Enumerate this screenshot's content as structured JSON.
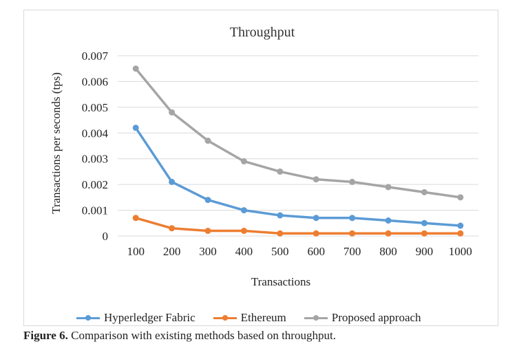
{
  "chart_data": {
    "type": "line",
    "title": "Throughput",
    "xlabel": "Transactions",
    "ylabel": "Transactions per seconds (tps)",
    "categories": [
      "100",
      "200",
      "300",
      "400",
      "500",
      "600",
      "700",
      "800",
      "900",
      "1000"
    ],
    "ylim": [
      0,
      0.007
    ],
    "yticks": [
      "0",
      "0.001",
      "0.002",
      "0.003",
      "0.004",
      "0.005",
      "0.006",
      "0.007"
    ],
    "grid": true,
    "legend_position": "bottom",
    "series": [
      {
        "name": "Hyperledger Fabric",
        "color": "#5b9bd5",
        "values": [
          0.0042,
          0.0021,
          0.0014,
          0.001,
          0.0008,
          0.0007,
          0.0007,
          0.0006,
          0.0005,
          0.0004
        ]
      },
      {
        "name": "Ethereum",
        "color": "#ed7d31",
        "values": [
          0.0007,
          0.0003,
          0.0002,
          0.0002,
          0.0001,
          0.0001,
          0.0001,
          0.0001,
          0.0001,
          0.0001
        ]
      },
      {
        "name": "Proposed approach",
        "color": "#a5a5a5",
        "values": [
          0.0065,
          0.0048,
          0.0037,
          0.0029,
          0.0025,
          0.0022,
          0.0021,
          0.0019,
          0.0017,
          0.0015
        ]
      }
    ]
  },
  "caption": {
    "label": "Figure  6.",
    "text": " Comparison with existing methods based on throughput."
  }
}
